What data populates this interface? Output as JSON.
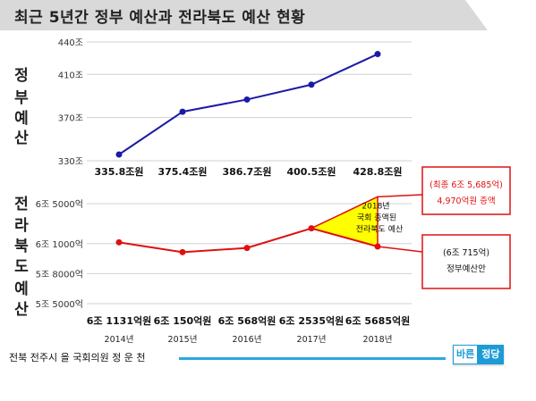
{
  "title": "최근 5년간 정부 예산과 전라북도 예산 현황",
  "chart_data": [
    {
      "type": "line",
      "side_label": [
        "정",
        "부",
        "예",
        "산"
      ],
      "y_ticks": [
        "440조",
        "410조",
        "370조",
        "330조"
      ],
      "y_tick_values": [
        440,
        410,
        370,
        330
      ],
      "ylim": [
        330,
        440
      ],
      "data_labels": [
        "335.8조원",
        "375.4조원",
        "386.7조원",
        "400.5조원",
        "428.8조원"
      ],
      "values": [
        335.8,
        375.4,
        386.7,
        400.5,
        428.8
      ],
      "color": "#1a1aa8",
      "grid": true
    },
    {
      "type": "line",
      "side_label": [
        "전",
        "라",
        "북",
        "도",
        "예",
        "산"
      ],
      "y_ticks": [
        "6조 5000억",
        "6조 1000억",
        "5조 8000억",
        "5조 5000억"
      ],
      "y_tick_values": [
        65000,
        61000,
        58000,
        55000
      ],
      "ylim": [
        55000,
        65000
      ],
      "data_labels": [
        "6조 1131억원",
        "6조 150억원",
        "6조 568억원",
        "6조 2535억원",
        "6조 5685억원"
      ],
      "years": [
        "2014년",
        "2015년",
        "2016년",
        "2017년",
        "2018년"
      ],
      "values": [
        61131,
        60150,
        60568,
        62535,
        65685
      ],
      "display_values": [
        61131,
        60150,
        60568,
        62535,
        60715
      ],
      "color": "#e01010",
      "grid": true,
      "annotations": {
        "increase_line1": "2018년",
        "increase_line2": "국회 증액된",
        "increase_line3": "전라북도 예산",
        "final_box_line1": "(최종 6조 5,685억)",
        "final_box_line2": "4,970억원 증액",
        "gov_box_line1": "(6조 715억)",
        "gov_box_line2": "정부예산안",
        "government_proposal_value": 60715,
        "final_value": 65685,
        "increase_amount": 4970,
        "triangle_color": "#ffff00"
      }
    }
  ],
  "footer": {
    "text": "전북 전주시 을 국회의원 정 운 천",
    "logo_part1": "바른",
    "logo_part2": "정당",
    "line_color": "#29a8e0"
  }
}
